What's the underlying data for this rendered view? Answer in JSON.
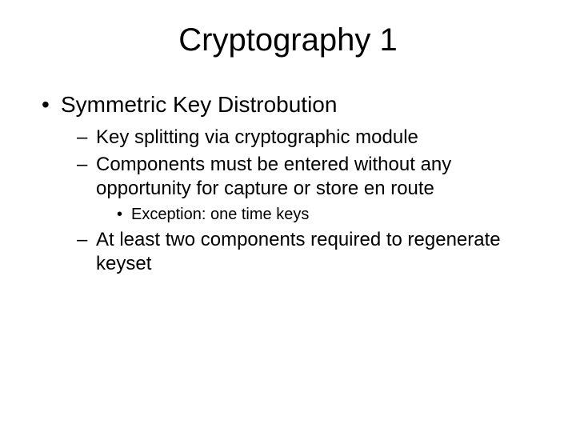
{
  "title": "Cryptography 1",
  "bullet1": "Symmetric Key Distrobution",
  "sub1": "Key splitting via cryptographic module",
  "sub2": "Components must be entered without any opportunity for capture or store en route",
  "subsub1": "Exception: one time keys",
  "sub3": "At least two components required to regenerate keyset",
  "colors": {
    "background": "#ffffff",
    "text": "#000000"
  },
  "typography": {
    "title_fontsize": 40,
    "level1_fontsize": 28,
    "level2_fontsize": 24,
    "level3_fontsize": 20,
    "font_family": "Arial"
  }
}
